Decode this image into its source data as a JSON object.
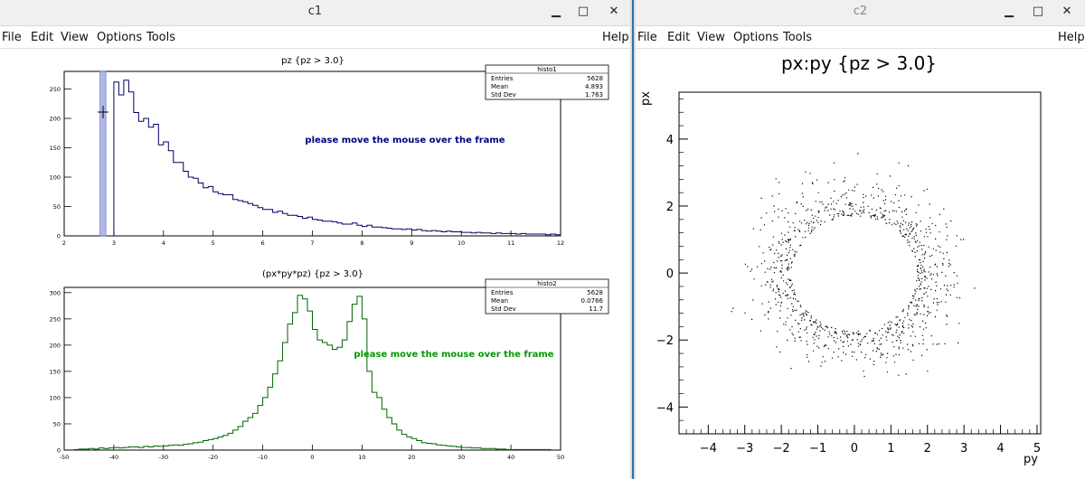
{
  "windows": {
    "c1": {
      "title": "c1"
    },
    "c2": {
      "title": "c2"
    }
  },
  "window_buttons": {
    "minimize": "▁",
    "maximize": "□",
    "close": "✕"
  },
  "menu": {
    "file": "File",
    "edit": "Edit",
    "view": "View",
    "options": "Options",
    "tools": "Tools",
    "help": "Help"
  },
  "colors": {
    "histo1_line": "#000066",
    "histo2_line": "#006600",
    "hint1": "#000080",
    "hint2": "#009900",
    "selection_band": "#b0b8e8",
    "window_separator": "#2d6db3"
  },
  "chart_data": [
    {
      "type": "histogram",
      "title": "pz {pz > 3.0}",
      "xlim": [
        2,
        12
      ],
      "ylim": [
        0,
        280
      ],
      "xticks": [
        "2",
        "3",
        "4",
        "5",
        "6",
        "7",
        "8",
        "9",
        "10",
        "11",
        "12"
      ],
      "yticks": [
        "0",
        "50",
        "100",
        "150",
        "200",
        "250"
      ],
      "stats": {
        "name": "histo1",
        "rows": [
          [
            "Entries",
            "5628"
          ],
          [
            "Mean",
            "4.893"
          ],
          [
            "Std Dev",
            "1.763"
          ]
        ]
      },
      "annotation": "please move the mouse over the frame",
      "selection_band": [
        2.72,
        2.84
      ],
      "bins_start": 3.0,
      "bin_width": 0.1,
      "values": [
        262,
        240,
        265,
        245,
        210,
        195,
        200,
        185,
        190,
        155,
        160,
        145,
        125,
        125,
        110,
        100,
        98,
        90,
        82,
        84,
        75,
        72,
        70,
        70,
        62,
        60,
        58,
        55,
        52,
        48,
        45,
        45,
        40,
        42,
        38,
        35,
        35,
        33,
        30,
        32,
        28,
        27,
        25,
        25,
        24,
        22,
        20,
        20,
        22,
        18,
        16,
        18,
        15,
        15,
        14,
        13,
        12,
        12,
        11,
        12,
        10,
        11,
        9,
        8,
        9,
        8,
        7,
        8,
        7,
        7,
        6,
        6,
        5,
        6,
        5,
        5,
        4,
        5,
        4,
        4,
        4,
        3,
        4,
        3,
        3,
        3,
        3,
        2,
        3,
        2
      ]
    },
    {
      "type": "histogram",
      "title": "(px*py*pz) {pz > 3.0}",
      "xlim": [
        -50,
        50
      ],
      "ylim": [
        0,
        310
      ],
      "xticks": [
        "-50",
        "-40",
        "-30",
        "-20",
        "-10",
        "0",
        "10",
        "20",
        "30",
        "40",
        "50"
      ],
      "yticks": [
        "0",
        "50",
        "100",
        "150",
        "200",
        "250",
        "300"
      ],
      "stats": {
        "name": "histo2",
        "rows": [
          [
            "Entries",
            "5628"
          ],
          [
            "Mean",
            "0.0766"
          ],
          [
            "Std Dev",
            "11.7"
          ]
        ]
      },
      "annotation": "please move the mouse over the frame",
      "bins_start": -48,
      "bin_width": 1,
      "values": [
        1,
        2,
        2,
        3,
        2,
        4,
        3,
        4,
        5,
        4,
        5,
        6,
        6,
        5,
        7,
        6,
        8,
        7,
        8,
        9,
        10,
        9,
        11,
        12,
        14,
        15,
        18,
        20,
        22,
        25,
        28,
        32,
        38,
        45,
        55,
        62,
        70,
        85,
        100,
        120,
        145,
        170,
        205,
        240,
        262,
        295,
        288,
        265,
        230,
        210,
        205,
        200,
        192,
        196,
        210,
        245,
        278,
        293,
        250,
        150,
        110,
        100,
        78,
        62,
        50,
        38,
        30,
        25,
        22,
        18,
        14,
        13,
        12,
        10,
        9,
        8,
        7,
        6,
        5,
        5,
        4,
        4,
        3,
        3,
        3,
        2,
        2,
        1,
        1,
        1,
        1,
        1,
        1,
        1,
        1,
        1
      ]
    },
    {
      "type": "scatter",
      "title": "px:py {pz > 3.0}",
      "xlabel": "py",
      "ylabel": "px",
      "xlim": [
        -4.8,
        5.1
      ],
      "ylim": [
        -4.8,
        5.4
      ],
      "xticks": [
        "-4",
        "-3",
        "-2",
        "-1",
        "0",
        "1",
        "2",
        "3",
        "4",
        "5"
      ],
      "yticks": [
        "-4",
        "-2",
        "0",
        "2",
        "4"
      ],
      "distribution": {
        "shape": "annulus",
        "center": [
          0.0,
          0.0
        ],
        "inner_radius_x": 1.7,
        "inner_radius_y": 1.72,
        "outer_radius": 3.2,
        "points_drawn": 5628
      }
    }
  ]
}
